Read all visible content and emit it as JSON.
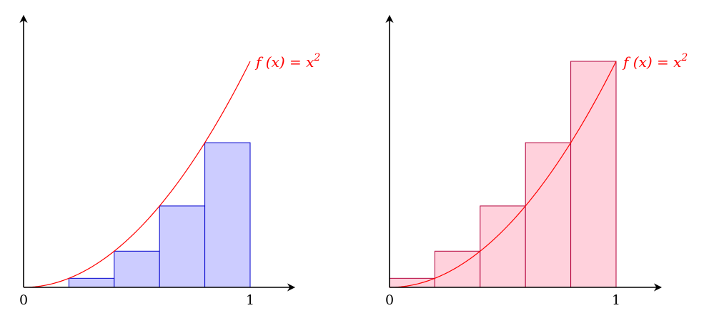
{
  "chart_data": [
    {
      "type": "bar",
      "subtype": "riemann-lower-sum",
      "function_label": {
        "lhs": "f (x) = x",
        "exp": "2"
      },
      "function_color": "#ff0000",
      "bar_fill": "#ccccff",
      "bar_stroke": "#0000cc",
      "xlim": [
        0,
        1
      ],
      "ylim": [
        0,
        1
      ],
      "x_ticks": [
        {
          "value": 0,
          "label": "0"
        },
        {
          "value": 1,
          "label": "1"
        }
      ],
      "bars": [
        {
          "x0": 0.0,
          "x1": 0.2,
          "height": 0.0
        },
        {
          "x0": 0.2,
          "x1": 0.4,
          "height": 0.04
        },
        {
          "x0": 0.4,
          "x1": 0.6,
          "height": 0.16
        },
        {
          "x0": 0.6,
          "x1": 0.8,
          "height": 0.36
        },
        {
          "x0": 0.8,
          "x1": 1.0,
          "height": 0.64
        }
      ],
      "curve": {
        "function": "x^2",
        "domain": [
          0,
          1
        ]
      },
      "grid": false
    },
    {
      "type": "bar",
      "subtype": "riemann-upper-sum",
      "function_label": {
        "lhs": "f (x) = x",
        "exp": "2"
      },
      "function_color": "#ff0000",
      "bar_fill": "#ffd1dc",
      "bar_stroke": "#b3003b",
      "xlim": [
        0,
        1
      ],
      "ylim": [
        0,
        1
      ],
      "x_ticks": [
        {
          "value": 0,
          "label": "0"
        },
        {
          "value": 1,
          "label": "1"
        }
      ],
      "bars": [
        {
          "x0": 0.0,
          "x1": 0.2,
          "height": 0.04
        },
        {
          "x0": 0.2,
          "x1": 0.4,
          "height": 0.16
        },
        {
          "x0": 0.4,
          "x1": 0.6,
          "height": 0.36
        },
        {
          "x0": 0.6,
          "x1": 0.8,
          "height": 0.64
        },
        {
          "x0": 0.8,
          "x1": 1.0,
          "height": 1.0
        }
      ],
      "curve": {
        "function": "x^2",
        "domain": [
          0,
          1
        ]
      },
      "grid": false
    }
  ]
}
